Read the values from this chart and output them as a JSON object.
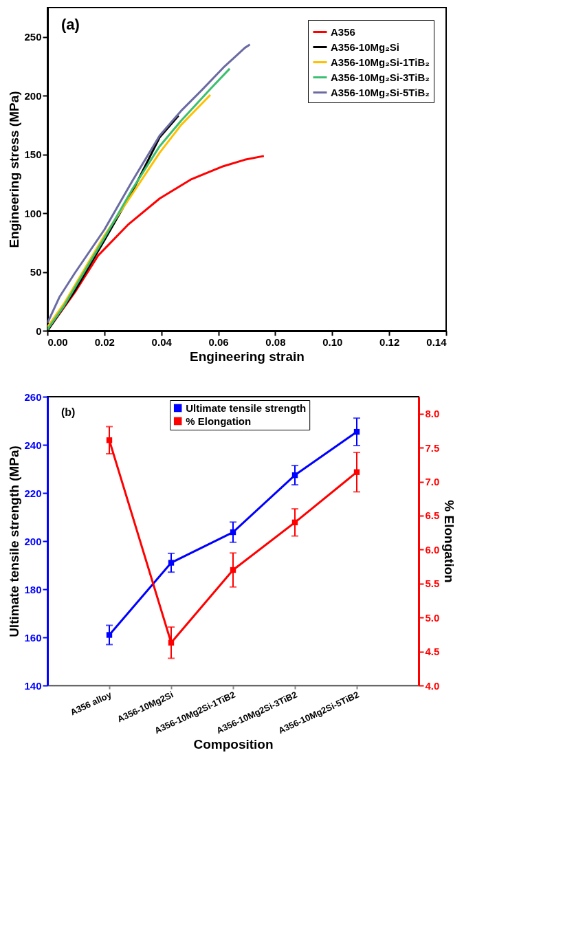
{
  "chart_data": [
    {
      "type": "line",
      "xlabel": "Engineering strain",
      "ylabel": "Engineering stress (MPa)",
      "annotations": [
        "(a)"
      ],
      "legend": "top right",
      "marker": "none",
      "xlim": [
        0,
        0.14
      ],
      "xticks": [
        {
          "value": 0,
          "label": "0.00"
        },
        0.02,
        0.04,
        0.06,
        0.08,
        {
          "value": 0.1,
          "label": "0.10"
        },
        0.12,
        0.14
      ],
      "ylim": [
        0,
        275
      ],
      "yticks": [
        0,
        50,
        100,
        150,
        200,
        250
      ],
      "series": [
        {
          "name": "A356",
          "color": "#ff0000",
          "x": [
            0,
            0.0096,
            0.0178,
            0.0282,
            0.0394,
            0.0506,
            0.0618,
            0.0693,
            0.076
          ],
          "values": [
            0,
            32.5,
            64,
            90,
            112.5,
            129,
            140,
            145.5,
            148.7
          ]
        },
        {
          "name": "A356-10Mg₂Si",
          "color": "#000000",
          "x": [
            0,
            0.0096,
            0.02,
            0.0297,
            0.0394,
            0.046
          ],
          "values": [
            0,
            34,
            77,
            118,
            164.5,
            183
          ]
        },
        {
          "name": "A356-10Mg₂Si-1TiB₂",
          "color": "#ffc000",
          "x": [
            0,
            0.0058,
            0.02,
            0.0297,
            0.0394,
            0.0469,
            0.0572
          ],
          "values": [
            3,
            23,
            81,
            116,
            151.5,
            175,
            200.7
          ]
        },
        {
          "name": "A356-10Mg₂Si-3TiB₂",
          "color": "#3cbf6e",
          "x": [
            0,
            0.0058,
            0.02,
            0.0297,
            0.0394,
            0.0469,
            0.0573,
            0.064
          ],
          "values": [
            1,
            21,
            79,
            120,
            157,
            178.6,
            206,
            223
          ]
        },
        {
          "name": "A356-10Mg₂Si-5TiB₂",
          "color": "#6b6ba3",
          "x": [
            0,
            0.0043,
            0.0096,
            0.02,
            0.0297,
            0.0394,
            0.0469,
            0.0543,
            0.0618,
            0.0663,
            0.0693,
            0.0711
          ],
          "values": [
            6.5,
            29,
            49,
            86,
            127,
            166,
            187,
            205,
            224,
            234,
            240.7,
            243.5
          ]
        }
      ]
    },
    {
      "type": "line",
      "xlabel": "Composition",
      "ylabel": "Ultimate tensile strength (MPa)",
      "y2label": "% Elongation",
      "annotations": [
        "(b)"
      ],
      "legend": "top",
      "marker": "square",
      "categories": [
        "A356 alloy",
        "A356-10Mg2Si",
        "A356-10Mg2Si-1TiB2",
        "A356-10Mg2Si-3TiB2",
        "A356-10Mg2Si-5TiB2"
      ],
      "ylim": [
        140,
        260
      ],
      "yticks": [
        140,
        160,
        180,
        200,
        220,
        240,
        260
      ],
      "y2lim": [
        4.0,
        8.25
      ],
      "y2ticks": [
        {
          "value": 4,
          "label": "4.0"
        },
        4.5,
        {
          "value": 5,
          "label": "5.0"
        },
        5.5,
        {
          "value": 6,
          "label": "6.0"
        },
        6.5,
        {
          "value": 7,
          "label": "7.0"
        },
        7.5,
        {
          "value": 8,
          "label": "8.0"
        }
      ],
      "series": [
        {
          "name": "Ultimate tensile strength",
          "color": "#0000ff",
          "values": [
            161,
            191,
            203.7,
            227.4,
            245.4
          ],
          "errors": [
            4,
            3.9,
            4.2,
            4,
            5.7
          ]
        },
        {
          "name": "% Elongation",
          "color": "#ff0000",
          "axis": "y2",
          "values": [
            7.61,
            4.63,
            5.7,
            6.4,
            7.14
          ],
          "errors": [
            0.2,
            0.23,
            0.25,
            0.2,
            0.29
          ]
        }
      ]
    }
  ]
}
